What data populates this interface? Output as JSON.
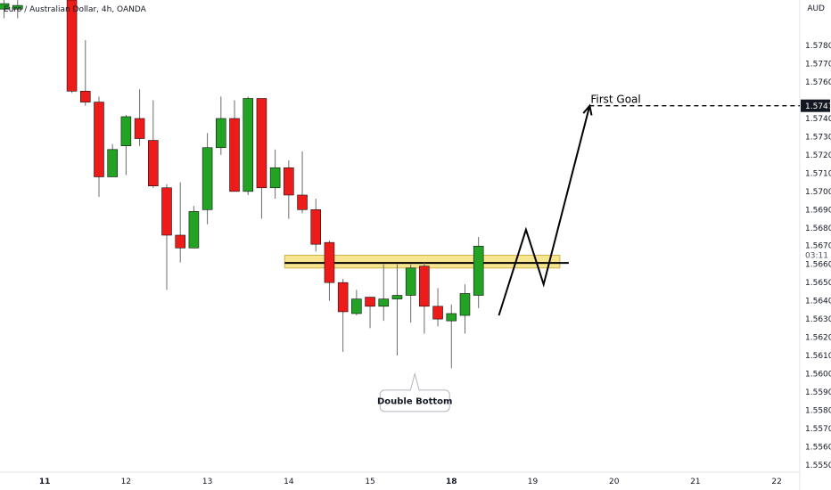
{
  "chart_data": {
    "type": "candlestick",
    "title": "Euro / Australian Dollar, 4h, OANDA",
    "currency": "AUD",
    "price_ticks": [
      "1.57800",
      "1.57700",
      "1.57600",
      "1.57400",
      "1.57300",
      "1.57200",
      "1.57100",
      "1.57000",
      "1.56900",
      "1.56800",
      "1.56600",
      "1.56500",
      "1.56400",
      "1.56300",
      "1.56200",
      "1.56100",
      "1.56000",
      "1.55900",
      "1.55800",
      "1.55700",
      "1.55600",
      "1.55500"
    ],
    "price_tick_values": [
      1.578,
      1.577,
      1.576,
      1.574,
      1.573,
      1.572,
      1.571,
      1.57,
      1.569,
      1.568,
      1.566,
      1.565,
      1.564,
      1.563,
      1.562,
      1.561,
      1.56,
      1.559,
      1.558,
      1.557,
      1.556,
      1.555
    ],
    "date_ticks": [
      {
        "label": "11",
        "x": 0.0,
        "bold": true
      },
      {
        "label": "12",
        "x": 6.0,
        "bold": false
      },
      {
        "label": "13",
        "x": 12.0,
        "bold": false
      },
      {
        "label": "14",
        "x": 18.0,
        "bold": false
      },
      {
        "label": "15",
        "x": 24.0,
        "bold": false
      },
      {
        "label": "18",
        "x": 30.0,
        "bold": true
      },
      {
        "label": "19",
        "x": 36.0,
        "bold": false
      },
      {
        "label": "20",
        "x": 42.0,
        "bold": false
      },
      {
        "label": "21",
        "x": 48.0,
        "bold": false
      },
      {
        "label": "22",
        "x": 54.0,
        "bold": false
      }
    ],
    "ylim": [
      1.5546,
      1.5805
    ],
    "xlim": [
      -3.3,
      55.7
    ],
    "candles": [
      {
        "x": -3,
        "o": 1.58,
        "h": 1.5805,
        "l": 1.5795,
        "c": 1.5803
      },
      {
        "x": -2,
        "o": 1.58,
        "h": 1.5805,
        "l": 1.5795,
        "c": 1.5802
      },
      {
        "x": 2,
        "o": 1.5805,
        "h": 1.5805,
        "l": 1.5754,
        "c": 1.5755
      },
      {
        "x": 3,
        "o": 1.5755,
        "h": 1.5783,
        "l": 1.5747,
        "c": 1.5749
      },
      {
        "x": 4,
        "o": 1.5749,
        "h": 1.5752,
        "l": 1.5697,
        "c": 1.5708
      },
      {
        "x": 5,
        "o": 1.5708,
        "h": 1.5726,
        "l": 1.5708,
        "c": 1.5723
      },
      {
        "x": 6,
        "o": 1.5725,
        "h": 1.5742,
        "l": 1.5709,
        "c": 1.5741
      },
      {
        "x": 7,
        "o": 1.574,
        "h": 1.5756,
        "l": 1.5725,
        "c": 1.5729
      },
      {
        "x": 8,
        "o": 1.5728,
        "h": 1.575,
        "l": 1.5702,
        "c": 1.5703
      },
      {
        "x": 9,
        "o": 1.5702,
        "h": 1.5704,
        "l": 1.5646,
        "c": 1.5676
      },
      {
        "x": 10,
        "o": 1.5676,
        "h": 1.5705,
        "l": 1.5661,
        "c": 1.5669
      },
      {
        "x": 11,
        "o": 1.5669,
        "h": 1.5692,
        "l": 1.5669,
        "c": 1.5689
      },
      {
        "x": 12,
        "o": 1.569,
        "h": 1.5732,
        "l": 1.5682,
        "c": 1.5724
      },
      {
        "x": 13,
        "o": 1.5724,
        "h": 1.5752,
        "l": 1.572,
        "c": 1.574
      },
      {
        "x": 14,
        "o": 1.574,
        "h": 1.575,
        "l": 1.57,
        "c": 1.57
      },
      {
        "x": 15,
        "o": 1.57,
        "h": 1.5752,
        "l": 1.5698,
        "c": 1.5751
      },
      {
        "x": 16,
        "o": 1.5751,
        "h": 1.5751,
        "l": 1.5685,
        "c": 1.5702
      },
      {
        "x": 17,
        "o": 1.5702,
        "h": 1.5723,
        "l": 1.5696,
        "c": 1.5713
      },
      {
        "x": 18,
        "o": 1.5713,
        "h": 1.5717,
        "l": 1.5685,
        "c": 1.5698
      },
      {
        "x": 19,
        "o": 1.5698,
        "h": 1.5722,
        "l": 1.5688,
        "c": 1.569
      },
      {
        "x": 20,
        "o": 1.569,
        "h": 1.5696,
        "l": 1.5667,
        "c": 1.5671
      },
      {
        "x": 21,
        "o": 1.5672,
        "h": 1.5673,
        "l": 1.564,
        "c": 1.565
      },
      {
        "x": 22,
        "o": 1.565,
        "h": 1.5652,
        "l": 1.5612,
        "c": 1.5634
      },
      {
        "x": 23,
        "o": 1.5633,
        "h": 1.5646,
        "l": 1.5632,
        "c": 1.5641
      },
      {
        "x": 24,
        "o": 1.5642,
        "h": 1.5642,
        "l": 1.5625,
        "c": 1.5637
      },
      {
        "x": 25,
        "o": 1.5637,
        "h": 1.566,
        "l": 1.5629,
        "c": 1.5641
      },
      {
        "x": 26,
        "o": 1.5641,
        "h": 1.566,
        "l": 1.561,
        "c": 1.5643
      },
      {
        "x": 27,
        "o": 1.5643,
        "h": 1.566,
        "l": 1.5628,
        "c": 1.5658
      },
      {
        "x": 28,
        "o": 1.5659,
        "h": 1.5661,
        "l": 1.5622,
        "c": 1.5637
      },
      {
        "x": 29,
        "o": 1.5637,
        "h": 1.5647,
        "l": 1.5626,
        "c": 1.563
      },
      {
        "x": 30,
        "o": 1.5629,
        "h": 1.5638,
        "l": 1.5603,
        "c": 1.5633
      },
      {
        "x": 31,
        "o": 1.5632,
        "h": 1.5649,
        "l": 1.5622,
        "c": 1.5644
      },
      {
        "x": 32,
        "o": 1.5643,
        "h": 1.5675,
        "l": 1.5636,
        "c": 1.567
      }
    ],
    "support_zone": {
      "x0": 17.7,
      "x1": 38.0,
      "y_low": 1.5658,
      "y_high": 1.5665,
      "line_y": 1.56608
    },
    "projection_path": [
      [
        33.5,
        1.5632
      ],
      [
        35.5,
        1.5679
      ],
      [
        36.8,
        1.5649
      ],
      [
        40.2,
        1.5747
      ]
    ],
    "first_goal": {
      "label": "First Goal",
      "price": 1.5747,
      "label_text": "1.57470",
      "x_start": 40.2
    },
    "double_bottom_callout": {
      "label": "Double Bottom",
      "pointer_x": 27.3,
      "pointer_price": 1.56,
      "box_price": 1.5592
    },
    "current_price": {
      "label": "1.56704",
      "countdown": "03:11",
      "price": 1.56704
    },
    "colors": {
      "up": "#22a323",
      "down": "#ee1b1b",
      "wick": "#6b6b6b",
      "zone_fill": "#f7e48b",
      "zone_stroke": "#c9b03f",
      "price_tag_bg": "#131722"
    }
  }
}
